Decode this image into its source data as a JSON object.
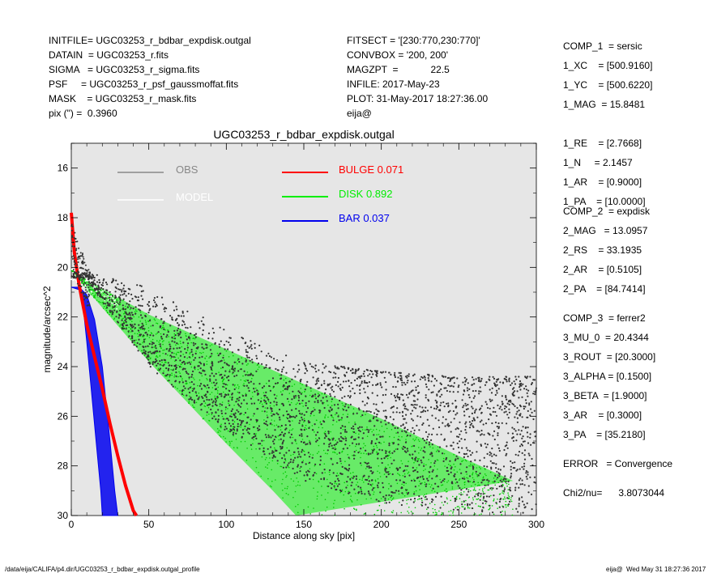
{
  "header": {
    "left": [
      "INITFILE= UGC03253_r_bdbar_expdisk.outgal",
      "DATAIN  = UGC03253_r.fits",
      "SIGMA   = UGC03253_r_sigma.fits",
      "PSF     = UGC03253_r_psf_gaussmoffat.fits",
      "MASK    = UGC03253_r_mask.fits",
      "pix (\") =  0.3960"
    ],
    "middle": [
      "FITSECT = '[230:770,230:770]'",
      "CONVBOX = '200, 200'",
      "MAGZPT  =            22.5",
      "INFILE: 2017-May-23",
      "PLOT: 31-May-2017 18:27:36.00",
      "eija@"
    ]
  },
  "params": [
    "COMP_1  = sersic",
    "1_XC    = [500.9160]",
    "1_YC    = [500.6220]",
    "1_MAG  = 15.8481",
    "1_RE    = [2.7668]",
    "1_N     = 2.1457",
    "1_AR    = [0.9000]",
    "1_PA    = [10.0000]",
    "COMP_2  = expdisk",
    "2_MAG   = 13.0957",
    "2_RS    = 33.1935",
    "2_AR    = [0.5105]",
    "2_PA    = [84.7414]",
    "COMP_3  = ferrer2",
    "3_MU_0  = 20.4344",
    "3_ROUT  = [20.3000]",
    "3_ALPHA = [0.1500]",
    "3_BETA  = [1.9000]",
    "3_AR    = [0.3000]",
    "3_PA    = [35.2180]",
    "ERROR   = Convergence",
    "Chi2/nu=      3.8073044"
  ],
  "footer": {
    "left": "/data/eija/CALIFA/p4.dir/UGC03253_r_bdbar_expdisk.outgal_profile",
    "right": "eija@  Wed May 31 18:27:36 2017"
  },
  "colors": {
    "background": "#e6e6e6",
    "obs": "#333333",
    "model": "#ffffff",
    "bulge": "#ff0000",
    "disk": "#00ee00",
    "bar": "#0000ee"
  },
  "chart_data": {
    "type": "scatter",
    "title": "UGC03253_r_bdbar_expdisk.outgal",
    "xlabel": "Distance along sky [pix]",
    "ylabel": "magnitude/arcsec^2",
    "xlim": [
      0,
      300
    ],
    "ylim": [
      30,
      15
    ],
    "y_inverted": true,
    "xticks": [
      "0",
      "50",
      "100",
      "150",
      "200",
      "250",
      "300"
    ],
    "yticks": [
      "16",
      "18",
      "20",
      "22",
      "24",
      "26",
      "28",
      "30"
    ],
    "legend": [
      {
        "label": "OBS",
        "color": "#888888"
      },
      {
        "label": "MODEL",
        "color": "#ffffff"
      },
      {
        "label": "BULGE  0.071",
        "color": "#ff0000"
      },
      {
        "label": "DISK  0.892",
        "color": "#00ee00"
      },
      {
        "label": "BAR  0.037",
        "color": "#0000ee"
      }
    ],
    "series": [
      {
        "name": "OBS",
        "description_points": [
          [
            0,
            19.8
          ],
          [
            3,
            20.1
          ],
          [
            10,
            20.3
          ],
          [
            25,
            20.6
          ],
          [
            50,
            21.7
          ],
          [
            100,
            23.3
          ],
          [
            150,
            24.6
          ],
          [
            200,
            25.2
          ],
          [
            250,
            25.6
          ],
          [
            300,
            25.8
          ]
        ],
        "envelope_upper": [
          [
            10,
            20.2
          ],
          [
            50,
            20.8
          ],
          [
            100,
            22.5
          ],
          [
            150,
            23.8
          ],
          [
            200,
            24.2
          ],
          [
            250,
            24.4
          ],
          [
            300,
            24.4
          ]
        ],
        "envelope_lower": [
          [
            10,
            20.5
          ],
          [
            50,
            24.0
          ],
          [
            100,
            26.6
          ],
          [
            150,
            28.6
          ],
          [
            200,
            29.5
          ],
          [
            250,
            29.8
          ],
          [
            300,
            30.0
          ]
        ]
      },
      {
        "name": "DISK",
        "upper": [
          [
            0,
            20.1
          ],
          [
            10,
            20.5
          ],
          [
            50,
            21.9
          ],
          [
            100,
            23.3
          ],
          [
            150,
            24.7
          ],
          [
            200,
            26.1
          ],
          [
            250,
            27.6
          ],
          [
            285,
            28.6
          ]
        ],
        "lower": [
          [
            0,
            20.1
          ],
          [
            10,
            20.9
          ],
          [
            50,
            23.8
          ],
          [
            100,
            27.1
          ],
          [
            130,
            29.0
          ],
          [
            145,
            30.0
          ]
        ]
      },
      {
        "name": "BAR",
        "upper": [
          [
            0,
            20.8
          ],
          [
            5,
            20.8
          ],
          [
            10,
            21.1
          ],
          [
            15,
            22.1
          ],
          [
            20,
            24.0
          ],
          [
            25,
            27.0
          ],
          [
            28,
            29.0
          ],
          [
            30,
            30.0
          ]
        ],
        "lower": [
          [
            0,
            20.8
          ],
          [
            5,
            20.9
          ],
          [
            8,
            21.8
          ],
          [
            10,
            23.0
          ],
          [
            13,
            25.0
          ],
          [
            16,
            27.0
          ],
          [
            19,
            29.0
          ],
          [
            20,
            30.0
          ]
        ]
      },
      {
        "name": "BULGE",
        "points": [
          [
            0,
            17.8
          ],
          [
            2,
            19.4
          ],
          [
            5,
            20.7
          ],
          [
            10,
            22.3
          ],
          [
            15,
            23.6
          ],
          [
            20,
            24.9
          ],
          [
            25,
            26.3
          ],
          [
            30,
            27.6
          ],
          [
            35,
            28.8
          ],
          [
            40,
            29.8
          ],
          [
            42,
            30.0
          ]
        ]
      }
    ]
  }
}
